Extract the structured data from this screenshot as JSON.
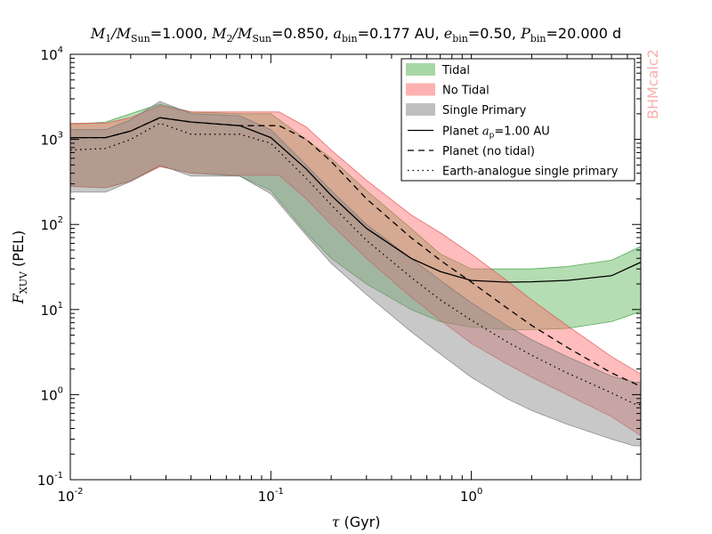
{
  "chart_data": {
    "type": "area",
    "title": "M₁/M_Sun=1.000, M₂/M_Sun=0.850, a_bin=0.177 AU, e_bin=0.50, P_bin=20.000 d",
    "title_parts": {
      "m1_label": "M",
      "m1_sub": "1",
      "m1_slash": "/M",
      "m1_sub2": "Sun",
      "m1_val": "=1.000, ",
      "m2_label": "M",
      "m2_sub": "2",
      "m2_slash": "/M",
      "m2_sub2": "Sun",
      "m2_val": "=0.850, ",
      "a_label": "a",
      "a_sub": "bin",
      "a_val": "=0.177 AU, ",
      "e_label": "e",
      "e_sub": "bin",
      "e_val": "=0.50, ",
      "p_label": "P",
      "p_sub": "bin",
      "p_val": "=20.000 d"
    },
    "xlabel": "τ (Gyr)",
    "xlabel_parts": {
      "sym": "τ",
      "unit": " (Gyr)"
    },
    "ylabel": "F_XUV (PEL)",
    "ylabel_parts": {
      "sym": "F",
      "sub": "XUV",
      "unit": " (PEL)"
    },
    "xscale": "log",
    "yscale": "log",
    "xlim": [
      0.01,
      7.0
    ],
    "ylim": [
      0.1,
      10000
    ],
    "xticks": [
      {
        "value": 0.01,
        "base": "10",
        "exp": "-2"
      },
      {
        "value": 0.1,
        "base": "10",
        "exp": "-1"
      },
      {
        "value": 1,
        "base": "10",
        "exp": "0"
      }
    ],
    "yticks": [
      {
        "value": 0.1,
        "base": "10",
        "exp": "-1"
      },
      {
        "value": 1,
        "base": "10",
        "exp": "0"
      },
      {
        "value": 10,
        "base": "10",
        "exp": "1"
      },
      {
        "value": 100,
        "base": "10",
        "exp": "2"
      },
      {
        "value": 1000,
        "base": "10",
        "exp": "3"
      },
      {
        "value": 10000,
        "base": "10",
        "exp": "4"
      }
    ],
    "legend_position": "top-right",
    "watermark": "BHMcalc2",
    "bands": [
      {
        "name": "Tidal",
        "color": "#4daf4a",
        "opacity": 0.42,
        "edge": "#3a9a3a",
        "x": [
          0.01,
          0.015,
          0.02,
          0.028,
          0.04,
          0.07,
          0.1,
          0.15,
          0.2,
          0.3,
          0.5,
          0.7,
          1.0,
          1.5,
          2.0,
          3.0,
          5.0,
          7.0
        ],
        "upper": [
          1500,
          1600,
          2000,
          2600,
          2100,
          2000,
          2000,
          1000,
          600,
          250,
          90,
          45,
          30,
          30,
          30,
          32,
          38,
          55
        ],
        "lower": [
          280,
          270,
          330,
          480,
          400,
          370,
          250,
          80,
          40,
          20,
          10,
          7.2,
          6.2,
          5.8,
          5.8,
          6.0,
          7.2,
          9.5
        ]
      },
      {
        "name": "No Tidal",
        "color": "#ff6b6b",
        "opacity": 0.45,
        "edge": "#e04c4c",
        "x": [
          0.01,
          0.015,
          0.02,
          0.028,
          0.04,
          0.07,
          0.11,
          0.15,
          0.2,
          0.3,
          0.5,
          0.7,
          1.0,
          1.5,
          2.0,
          3.0,
          5.0,
          7.0
        ],
        "upper": [
          1550,
          1550,
          1800,
          2500,
          2100,
          2100,
          2100,
          1400,
          750,
          330,
          130,
          80,
          45,
          22,
          13,
          6.5,
          2.8,
          1.75
        ],
        "lower": [
          280,
          270,
          320,
          480,
          400,
          380,
          380,
          200,
          100,
          40,
          14,
          7.5,
          4.0,
          2.3,
          1.6,
          1.0,
          0.55,
          0.33
        ]
      },
      {
        "name": "Single Primary",
        "color": "#8c8c8c",
        "opacity": 0.48,
        "edge": "#777777",
        "x": [
          0.01,
          0.015,
          0.02,
          0.028,
          0.04,
          0.07,
          0.1,
          0.15,
          0.2,
          0.3,
          0.5,
          0.7,
          1.0,
          1.5,
          2.0,
          3.0,
          5.0,
          6.5,
          7.0
        ],
        "upper": [
          1300,
          1300,
          1700,
          2800,
          2000,
          1900,
          1300,
          500,
          250,
          100,
          40,
          22,
          12,
          6.5,
          4.4,
          2.8,
          1.65,
          1.4,
          1.4
        ],
        "lower": [
          240,
          240,
          320,
          500,
          370,
          370,
          230,
          75,
          35,
          15,
          5.5,
          3.0,
          1.6,
          0.9,
          0.65,
          0.45,
          0.3,
          0.25,
          0.25
        ]
      }
    ],
    "lines": [
      {
        "name": "Planet",
        "name_sym": "a",
        "name_sub": "p",
        "name_rest": "=1.00 AU",
        "dash": "none",
        "x": [
          0.01,
          0.015,
          0.02,
          0.028,
          0.04,
          0.07,
          0.1,
          0.15,
          0.2,
          0.3,
          0.5,
          0.7,
          1.0,
          1.5,
          2.0,
          3.0,
          5.0,
          7.0
        ],
        "y": [
          1050,
          1050,
          1250,
          1800,
          1600,
          1450,
          1050,
          450,
          220,
          90,
          40,
          28,
          22,
          21,
          21.2,
          22,
          25,
          36
        ]
      },
      {
        "name": "Planet (no tidal)",
        "dash": "7,5",
        "x": [
          0.01,
          0.015,
          0.02,
          0.028,
          0.04,
          0.07,
          0.11,
          0.15,
          0.2,
          0.3,
          0.5,
          0.7,
          1.0,
          1.5,
          2.0,
          3.0,
          5.0,
          7.0
        ],
        "y": [
          1050,
          1050,
          1250,
          1800,
          1600,
          1450,
          1450,
          1000,
          550,
          200,
          70,
          38,
          21,
          10.5,
          6.5,
          3.6,
          1.8,
          1.25
        ]
      },
      {
        "name": "Earth-analogue single primary",
        "dash": "1.5,4",
        "x": [
          0.01,
          0.015,
          0.02,
          0.028,
          0.04,
          0.07,
          0.1,
          0.15,
          0.2,
          0.3,
          0.5,
          0.7,
          1.0,
          1.5,
          2.0,
          3.0,
          5.0,
          6.5,
          7.0
        ],
        "y": [
          750,
          780,
          1000,
          1550,
          1150,
          1150,
          900,
          350,
          170,
          65,
          24,
          13,
          7.5,
          4.2,
          2.9,
          1.8,
          1.05,
          0.78,
          0.76
        ]
      }
    ]
  }
}
